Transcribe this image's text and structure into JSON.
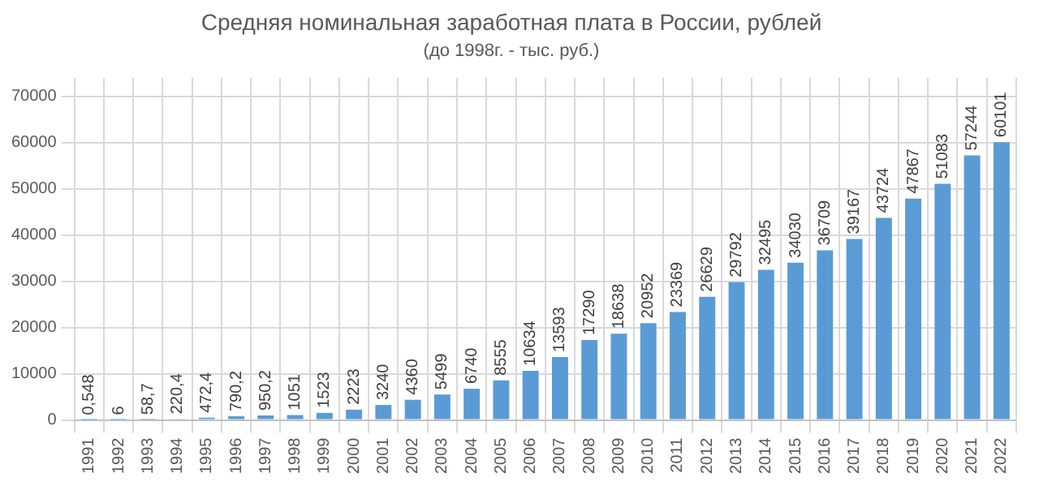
{
  "chart_data": {
    "type": "bar",
    "title": "Средняя номинальная заработная плата в России, рублей",
    "subtitle": "(до 1998г. - тыс. руб.)",
    "categories": [
      "1991",
      "1992",
      "1993",
      "1994",
      "1995",
      "1996",
      "1997",
      "1998",
      "1999",
      "2000",
      "2001",
      "2002",
      "2003",
      "2004",
      "2005",
      "2006",
      "2007",
      "2008",
      "2009",
      "2010",
      "2011",
      "2012",
      "2013",
      "2014",
      "2015",
      "2016",
      "2017",
      "2018",
      "2019",
      "2020",
      "2021",
      "2022"
    ],
    "values": [
      0.548,
      6,
      58.7,
      220.4,
      472.4,
      790.2,
      950.2,
      1051,
      1523,
      2223,
      3240,
      4360,
      5499,
      6740,
      8555,
      10634,
      13593,
      17290,
      18638,
      20952,
      23369,
      26629,
      29792,
      32495,
      34030,
      36709,
      39167,
      43724,
      47867,
      51083,
      57244,
      60101
    ],
    "value_labels": [
      "0,548",
      "6",
      "58,7",
      "220,4",
      "472,4",
      "790,2",
      "950,2",
      "1051",
      "1523",
      "2223",
      "3240",
      "4360",
      "5499",
      "6740",
      "8555",
      "10634",
      "13593",
      "17290",
      "18638",
      "20952",
      "23369",
      "26629",
      "29792",
      "32495",
      "34030",
      "36709",
      "39167",
      "43724",
      "47867",
      "51083",
      "57244",
      "60101"
    ],
    "color": "#5b9bd5",
    "ylim": [
      0,
      74000
    ],
    "yticks": [
      0,
      10000,
      20000,
      30000,
      40000,
      50000,
      60000,
      70000
    ],
    "grid": true
  }
}
